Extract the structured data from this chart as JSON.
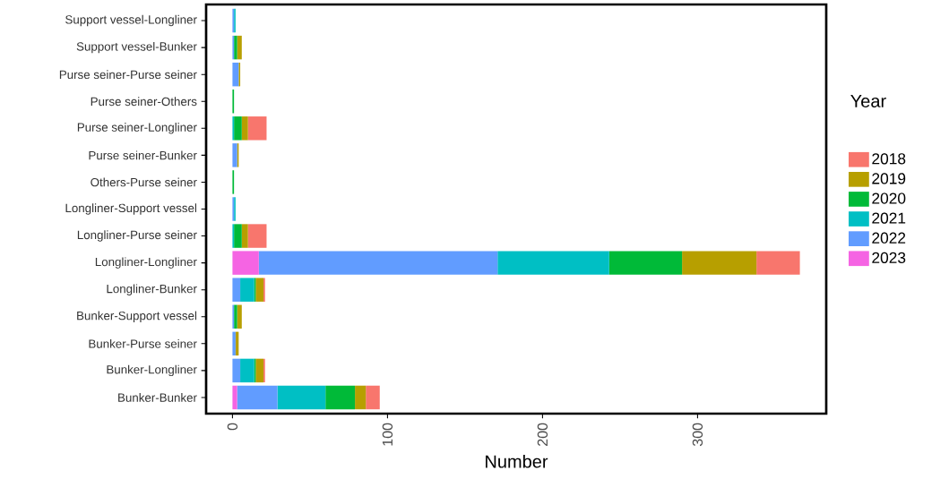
{
  "chart_data": {
    "type": "bar",
    "orientation": "horizontal",
    "stacked": true,
    "xlabel": "Number",
    "legend_title": "Year",
    "legend": "right",
    "categories": [
      "Support vessel-Longliner",
      "Support vessel-Bunker",
      "Purse seiner-Purse seiner",
      "Purse seiner-Others",
      "Purse seiner-Longliner",
      "Purse seiner-Bunker",
      "Others-Purse seiner",
      "Longliner-Support vessel",
      "Longliner-Purse seiner",
      "Longliner-Longliner",
      "Longliner-Bunker",
      "Bunker-Support vessel",
      "Bunker-Purse seiner",
      "Bunker-Longliner",
      "Bunker-Bunker"
    ],
    "series": [
      {
        "name": "2023",
        "color": "#F564E3",
        "values": [
          null,
          null,
          null,
          null,
          null,
          null,
          null,
          null,
          null,
          17,
          null,
          null,
          null,
          null,
          3
        ]
      },
      {
        "name": "2022",
        "color": "#619CFF",
        "values": [
          1,
          1,
          4,
          null,
          null,
          3,
          null,
          1,
          null,
          154,
          5,
          1,
          2,
          5,
          26
        ]
      },
      {
        "name": "2021",
        "color": "#00BFC4",
        "values": [
          1,
          null,
          null,
          null,
          1,
          null,
          null,
          1,
          1,
          72,
          9,
          null,
          null,
          9,
          31
        ]
      },
      {
        "name": "2020",
        "color": "#00BA38",
        "values": [
          null,
          2,
          null,
          1,
          5,
          null,
          1,
          null,
          5,
          47,
          1,
          2,
          null,
          1,
          19
        ]
      },
      {
        "name": "2019",
        "color": "#B79F00",
        "values": [
          null,
          3,
          1,
          null,
          4,
          1,
          null,
          null,
          4,
          48,
          5,
          3,
          2,
          5,
          7
        ]
      },
      {
        "name": "2018",
        "color": "#F8766D",
        "values": [
          null,
          null,
          null,
          null,
          12,
          null,
          null,
          null,
          12,
          28,
          1,
          null,
          null,
          1,
          9
        ]
      }
    ],
    "xlim": [
      -17,
      383
    ],
    "xticks": [
      0,
      100,
      200,
      300
    ],
    "grid": false
  }
}
